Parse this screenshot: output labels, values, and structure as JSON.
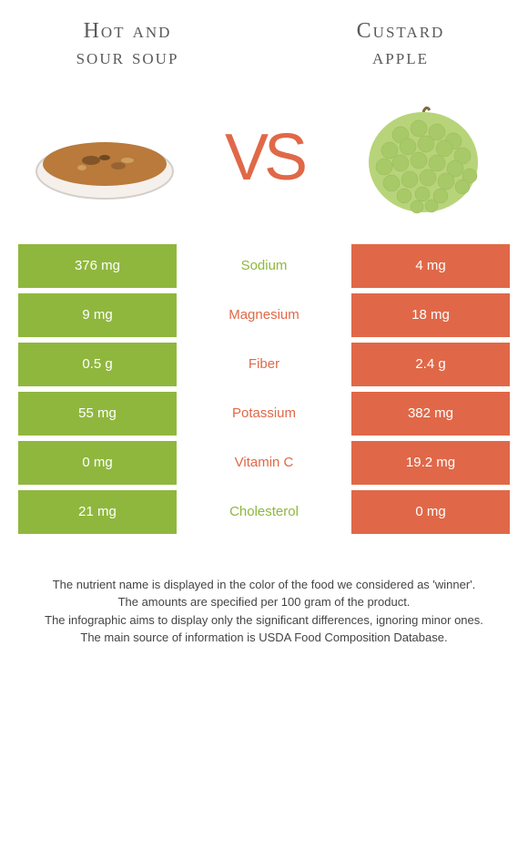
{
  "left": {
    "title_line1": "Hot and",
    "title_line2": "sour soup",
    "color": "#8fb73e"
  },
  "right": {
    "title_line1": "Custard",
    "title_line2": "apple",
    "color": "#e06848"
  },
  "vs": "VS",
  "rows": [
    {
      "left": "376 mg",
      "label": "Sodium",
      "right": "4 mg",
      "winner": "left"
    },
    {
      "left": "9 mg",
      "label": "Magnesium",
      "right": "18 mg",
      "winner": "right"
    },
    {
      "left": "0.5 g",
      "label": "Fiber",
      "right": "2.4 g",
      "winner": "right"
    },
    {
      "left": "55 mg",
      "label": "Potassium",
      "right": "382 mg",
      "winner": "right"
    },
    {
      "left": "0 mg",
      "label": "Vitamin C",
      "right": "19.2 mg",
      "winner": "right"
    },
    {
      "left": "21 mg",
      "label": "Cholesterol",
      "right": "0 mg",
      "winner": "left"
    }
  ],
  "footer": {
    "line1": "The nutrient name is displayed in the color of the food we considered as 'winner'.",
    "line2": "The amounts are specified per 100 gram of the product.",
    "line3": "The infographic aims to display only the significant differences, ignoring minor ones.",
    "line4": "The main source of information is USDA Food Composition Database."
  }
}
